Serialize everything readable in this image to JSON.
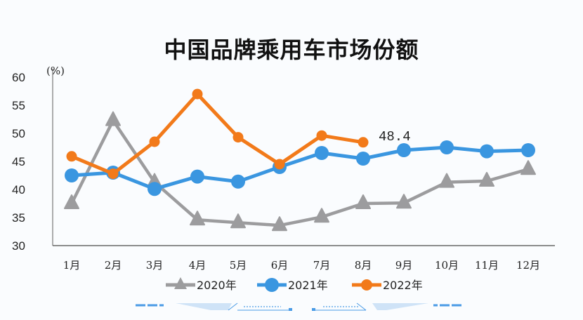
{
  "chart_data": {
    "type": "line",
    "title": "中国品牌乘用车市场份额",
    "xlabel": "",
    "ylabel": "(%)",
    "ylim": [
      30,
      60
    ],
    "yticks": [
      60,
      55,
      50,
      45,
      40,
      35,
      30
    ],
    "grid": false,
    "legend_position": "bottom",
    "categories": [
      "1月",
      "2月",
      "3月",
      "4月",
      "5月",
      "6月",
      "7月",
      "8月",
      "9月",
      "10月",
      "11月",
      "12月"
    ],
    "series": [
      {
        "name": "2020年",
        "color": "#9c9c9e",
        "marker": "triangle",
        "values": [
          37.5,
          52.3,
          41.3,
          34.6,
          34.1,
          33.6,
          35.1,
          37.5,
          37.6,
          41.3,
          41.5,
          43.6
        ]
      },
      {
        "name": "2021年",
        "color": "#3a96e0",
        "marker": "circle",
        "values": [
          42.5,
          43.0,
          40.1,
          42.3,
          41.4,
          44.0,
          46.5,
          45.5,
          47.0,
          47.5,
          46.8,
          47.0
        ]
      },
      {
        "name": "2022年",
        "color": "#f27a1a",
        "marker": "circle",
        "values": [
          45.9,
          42.8,
          48.5,
          57.0,
          49.3,
          44.5,
          49.6,
          48.4
        ]
      }
    ],
    "annotations": [
      {
        "series": "2022年",
        "category": "8月",
        "text": "48.4"
      }
    ]
  }
}
